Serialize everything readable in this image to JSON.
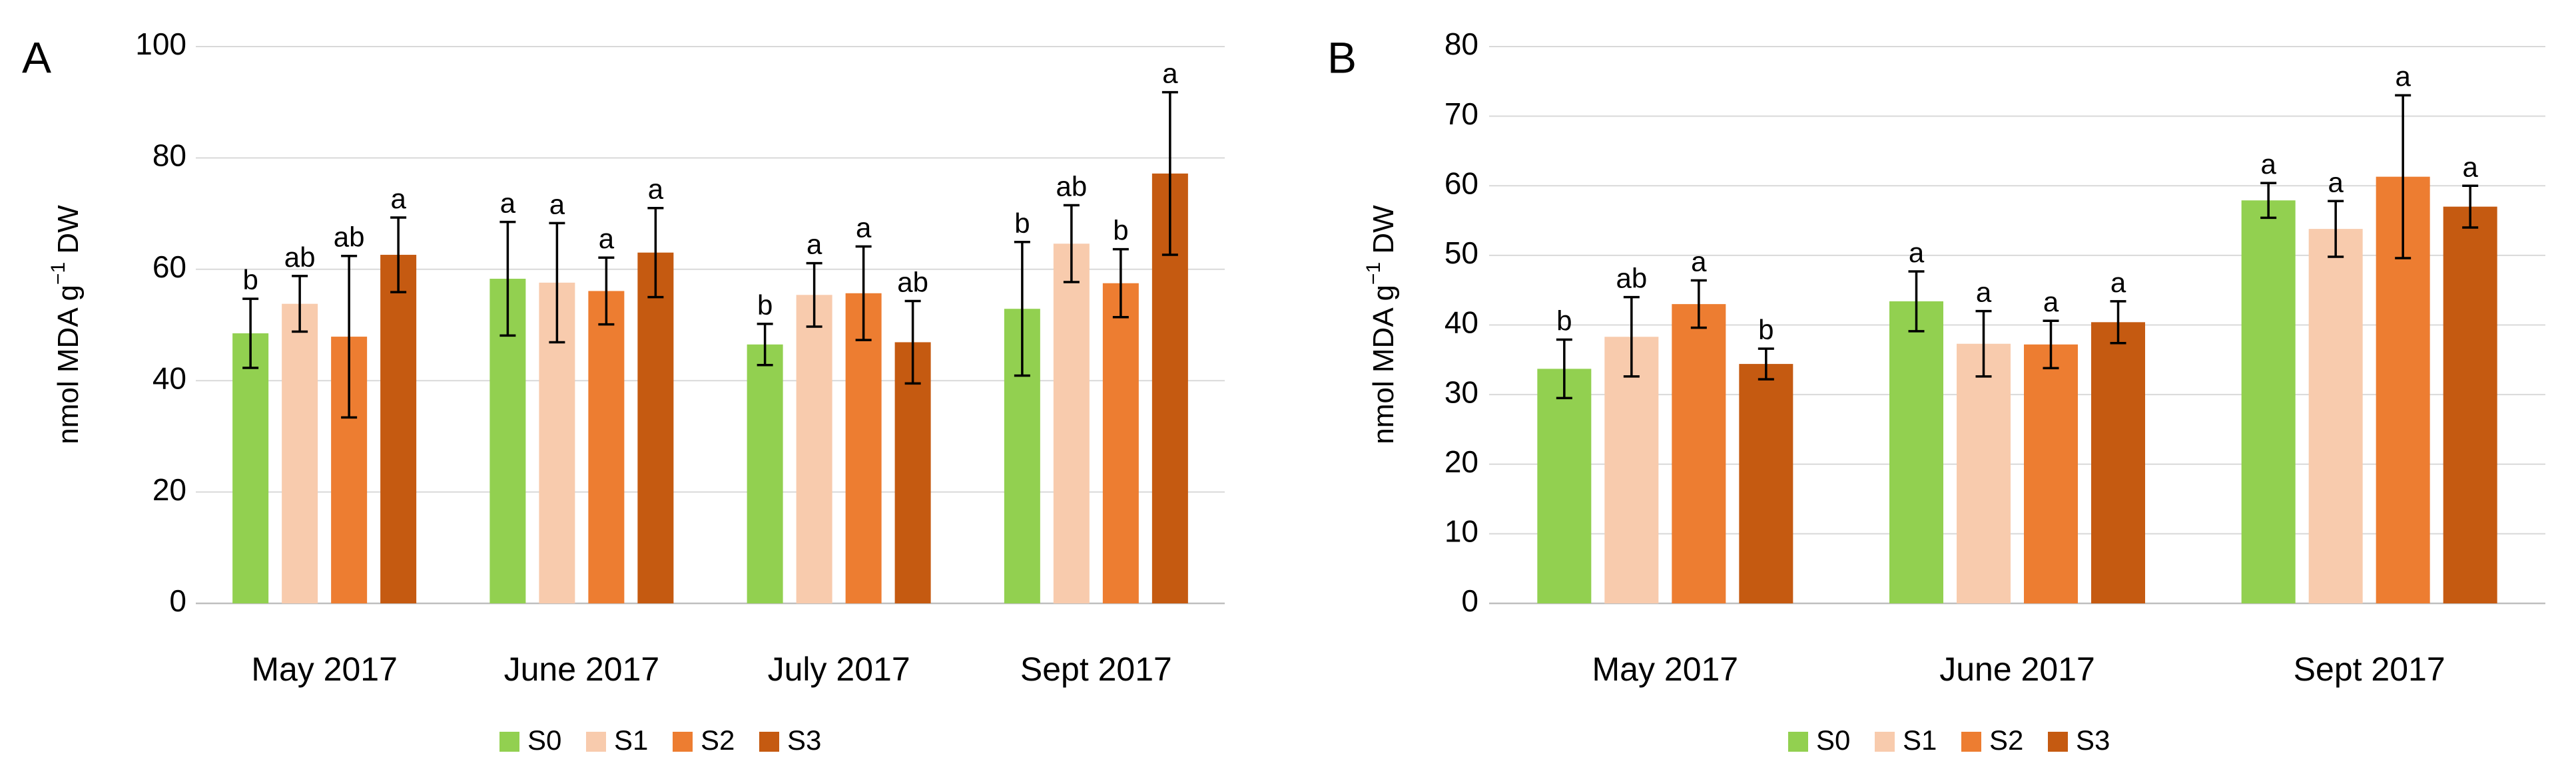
{
  "figure": {
    "series": [
      {
        "name": "S0",
        "color": "#92d050"
      },
      {
        "name": "S1",
        "color": "#f8cbad"
      },
      {
        "name": "S2",
        "color": "#ed7d31"
      },
      {
        "name": "S3",
        "color": "#c55a11"
      }
    ]
  },
  "chart_data": [
    {
      "type": "bar",
      "panel_label": "A",
      "title": "",
      "xlabel": "",
      "ylabel": "nmol MDA g",
      "ylabel_sup": "−1",
      "ylabel_suffix": " DW",
      "ylim": [
        0,
        100
      ],
      "yticks": [
        0,
        20,
        40,
        60,
        80,
        100
      ],
      "grid": true,
      "legend": "bottom-center",
      "categories": [
        "May 2017",
        "June 2017",
        "July 2017",
        "Sept 2017"
      ],
      "series": [
        {
          "name": "S0",
          "values": [
            48.5,
            58.3,
            46.5,
            52.9
          ],
          "errors": [
            6.2,
            10.2,
            3.7,
            12.0
          ],
          "letters": [
            "b",
            "a",
            "b",
            "b"
          ]
        },
        {
          "name": "S1",
          "values": [
            53.8,
            57.6,
            55.4,
            64.6
          ],
          "errors": [
            5.0,
            10.7,
            5.7,
            6.9
          ],
          "letters": [
            "ab",
            "a",
            "a",
            "ab"
          ]
        },
        {
          "name": "S2",
          "values": [
            47.9,
            56.1,
            55.7,
            57.5
          ],
          "errors": [
            14.5,
            6.0,
            8.4,
            6.1
          ],
          "letters": [
            "ab",
            "a",
            "a",
            "b"
          ]
        },
        {
          "name": "S3",
          "values": [
            62.6,
            63.0,
            46.9,
            77.2
          ],
          "errors": [
            6.7,
            8.0,
            7.4,
            14.6
          ],
          "letters": [
            "a",
            "a",
            "ab",
            "a"
          ]
        }
      ]
    },
    {
      "type": "bar",
      "panel_label": "B",
      "title": "",
      "xlabel": "",
      "ylabel": "nmol MDA g",
      "ylabel_sup": "−1",
      "ylabel_suffix": " DW",
      "ylim": [
        0,
        80
      ],
      "yticks": [
        0,
        10,
        20,
        30,
        40,
        50,
        60,
        70,
        80
      ],
      "grid": true,
      "legend": "bottom-center",
      "categories": [
        "May 2017",
        "June 2017",
        "Sept 2017"
      ],
      "series": [
        {
          "name": "S0",
          "values": [
            33.7,
            43.4,
            57.9
          ],
          "errors": [
            4.2,
            4.3,
            2.5
          ],
          "letters": [
            "b",
            "a",
            "a"
          ]
        },
        {
          "name": "S1",
          "values": [
            38.3,
            37.3,
            53.8
          ],
          "errors": [
            5.7,
            4.7,
            4.0
          ],
          "letters": [
            "ab",
            "a",
            "a"
          ]
        },
        {
          "name": "S2",
          "values": [
            43.0,
            37.2,
            61.3
          ],
          "errors": [
            3.4,
            3.4,
            11.7
          ],
          "letters": [
            "a",
            "a",
            "a"
          ]
        },
        {
          "name": "S3",
          "values": [
            34.4,
            40.4,
            57.0
          ],
          "errors": [
            2.2,
            3.0,
            3.0
          ],
          "letters": [
            "b",
            "a",
            "a"
          ]
        }
      ]
    }
  ]
}
